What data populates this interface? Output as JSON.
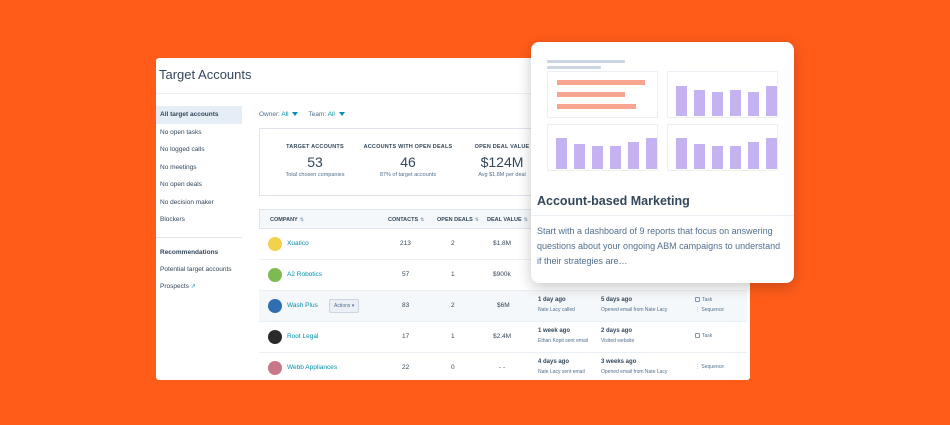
{
  "app": {
    "title": "Target Accounts"
  },
  "sidebar": {
    "items": [
      {
        "label": "All target accounts",
        "active": true
      },
      {
        "label": "No open tasks"
      },
      {
        "label": "No logged calls"
      },
      {
        "label": "No meetings"
      },
      {
        "label": "No open deals"
      },
      {
        "label": "No decision maker"
      },
      {
        "label": "Blockers"
      }
    ],
    "section2_title": "Recommendations",
    "section2_items": [
      {
        "label": "Potential target accounts"
      },
      {
        "label": "Prospects"
      }
    ]
  },
  "filters": {
    "owner_label": "Owner:",
    "owner_value": "All",
    "team_label": "Team:",
    "team_value": "All"
  },
  "kpis": [
    {
      "label": "TARGET ACCOUNTS",
      "value": "53",
      "sub": "Total chosen companies"
    },
    {
      "label": "ACCOUNTS WITH OPEN DEALS",
      "value": "46",
      "sub": "87% of target accounts"
    },
    {
      "label": "OPEN DEAL VALUE",
      "value": "$124M",
      "sub": "Avg $1.8M per deal"
    }
  ],
  "table": {
    "headers": {
      "company": "COMPANY",
      "contacts": "CONTACTS",
      "open_deals": "OPEN DEALS",
      "deal_value": "DEAL VALUE"
    },
    "actions_label": "Actions",
    "rows": [
      {
        "company": "Xuatico",
        "contacts": "213",
        "open_deals": "2",
        "deal_value": "$1.8M",
        "logo_color": "#f2d24b"
      },
      {
        "company": "A2 Robotics",
        "contacts": "57",
        "open_deals": "1",
        "deal_value": "$900k",
        "logo_color": "#7dbb52"
      },
      {
        "company": "Wash Plus",
        "contacts": "83",
        "open_deals": "2",
        "deal_value": "$6M",
        "logo_color": "#2f6fb0",
        "act1_main": "1 day ago",
        "act1_sub": "Nate Lacy called",
        "act2_main": "5 days ago",
        "act2_sub": "Opened email from Nate Lacy",
        "tag1": "Task",
        "tag2": "Sequence"
      },
      {
        "company": "Root Legal",
        "contacts": "17",
        "open_deals": "1",
        "deal_value": "$2.4M",
        "logo_color": "#2b2b2b",
        "act1_main": "1 week ago",
        "act1_sub": "Ethan Kopit sent email",
        "act2_main": "2 days ago",
        "act2_sub": "Visited website",
        "tag1": "Task"
      },
      {
        "company": "Webb Appliances",
        "contacts": "22",
        "open_deals": "0",
        "deal_value": "- -",
        "logo_color": "#c9788a",
        "act1_main": "4 days ago",
        "act1_sub": "Nate Lacy sent email",
        "act2_main": "3 weeks ago",
        "act2_sub": "Opened email from Nate Lacy",
        "tag1": "Sequence"
      }
    ]
  },
  "card": {
    "title": "Account-based Marketing",
    "description": "Start with a dashboard of 9 reports that focus on answering questions about your ongoing ABM campaigns to understand if their strategies are…",
    "bar_color": "#c4b3f0",
    "hbar_color": "#f8a58f"
  }
}
